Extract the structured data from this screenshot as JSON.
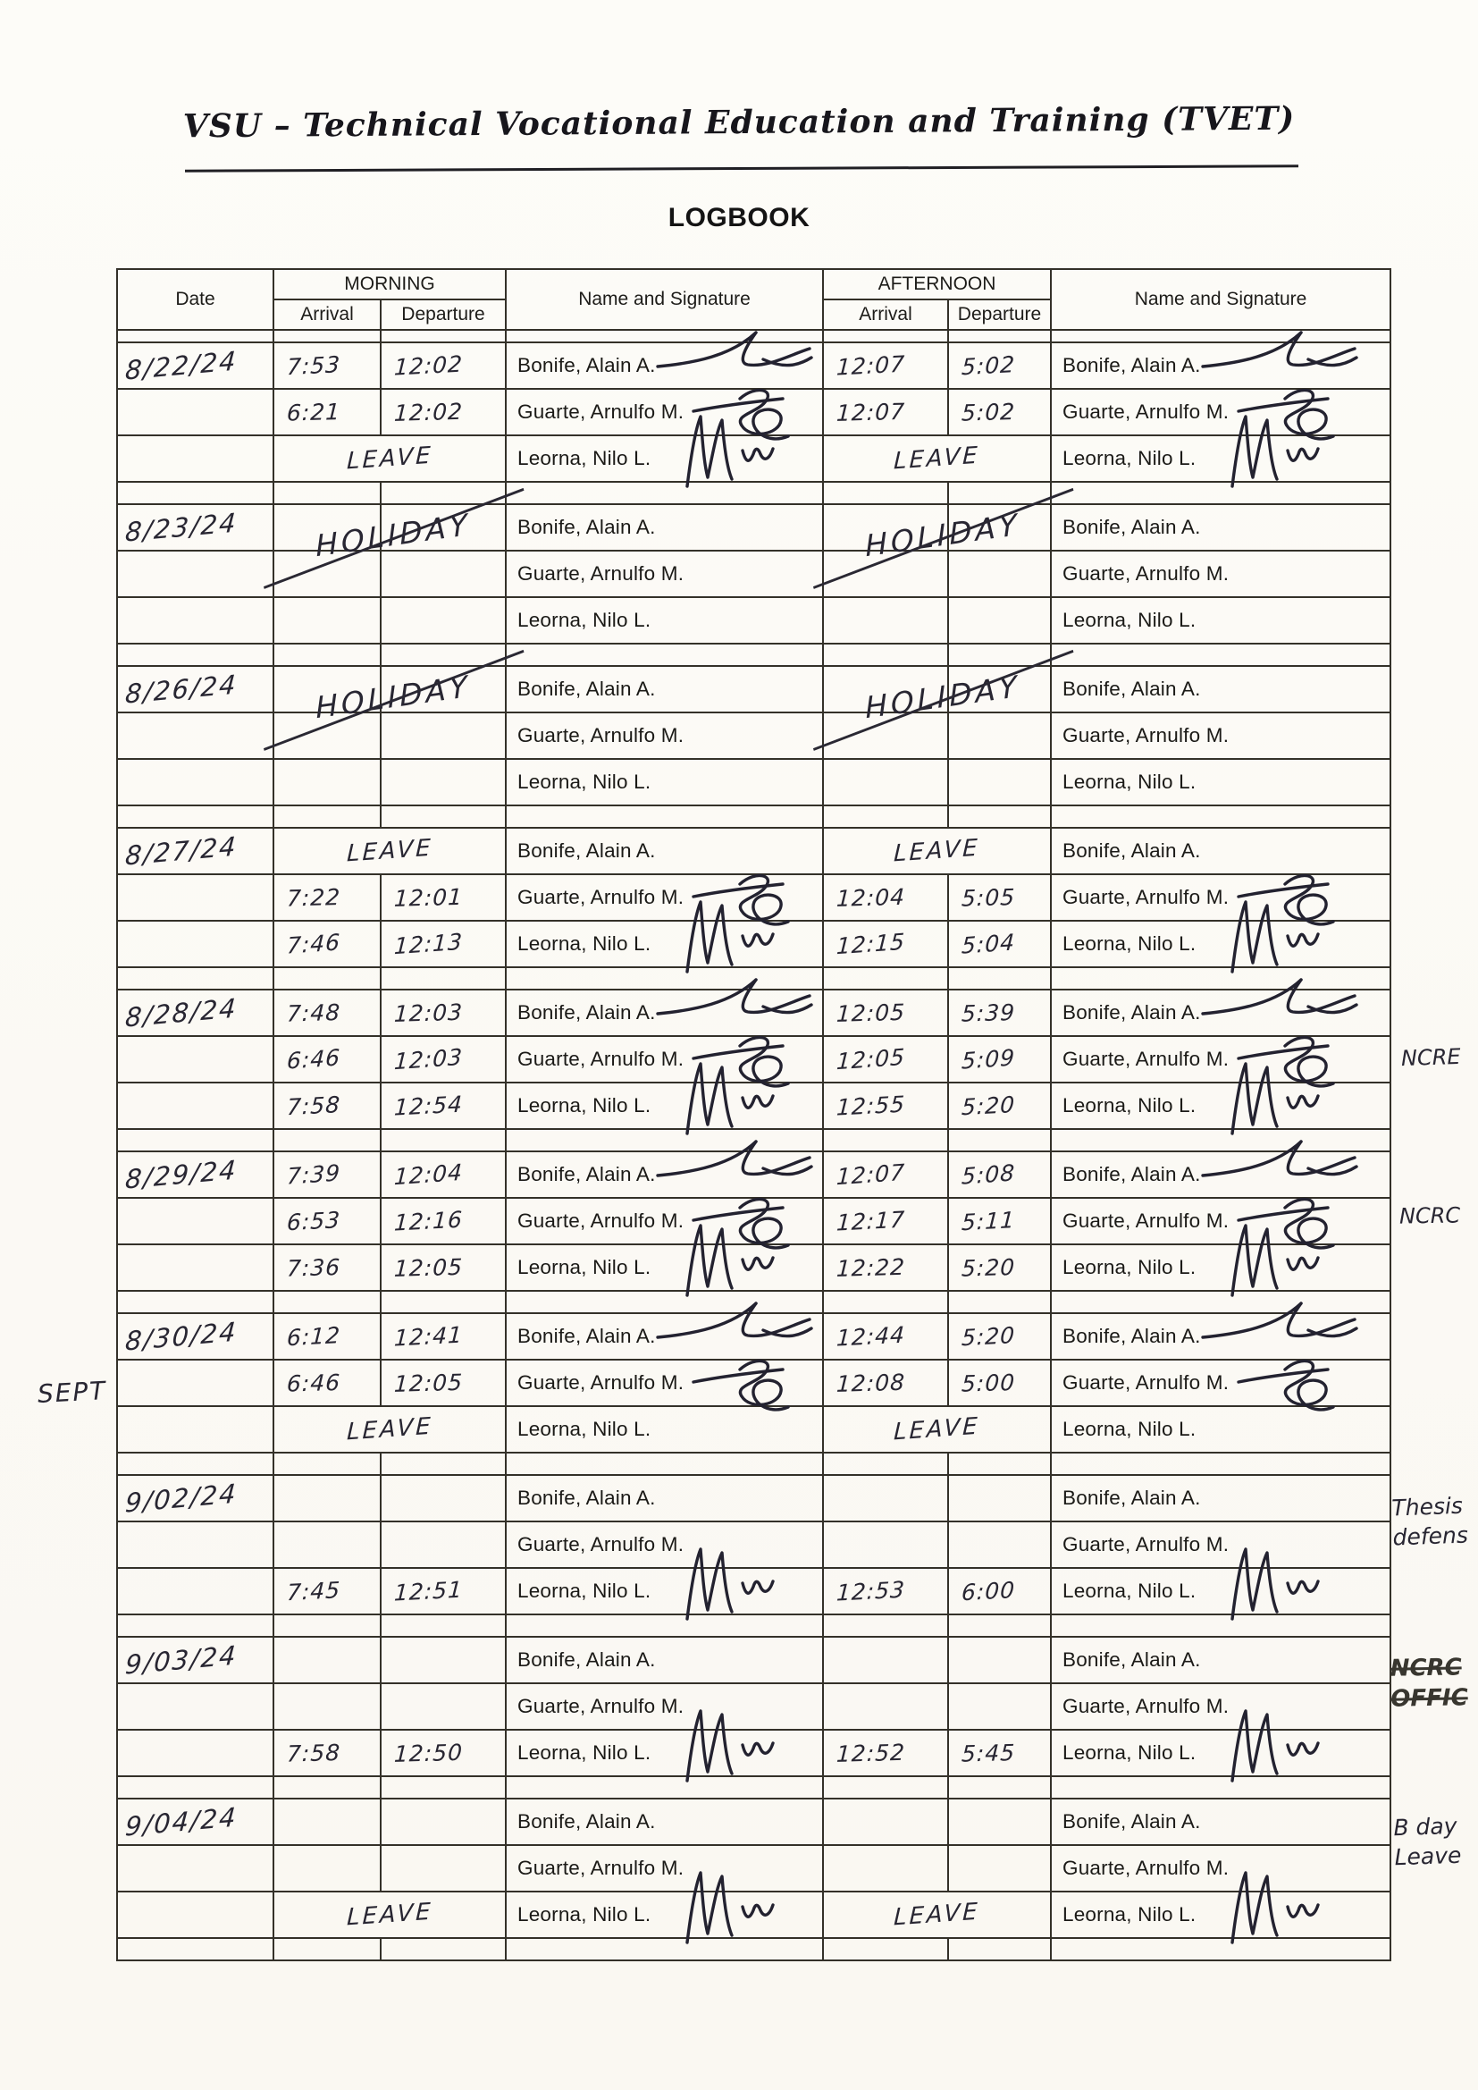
{
  "page": {
    "header_title": "VSU – Technical Vocational Education and Training (TVET)",
    "logbook_title": "LOGBOOK"
  },
  "table": {
    "headers": {
      "date": "Date",
      "morning": "MORNING",
      "afternoon": "AFTERNOON",
      "arrival": "Arrival",
      "departure": "Departure",
      "name_signature": "Name and Signature"
    },
    "names": [
      "Bonife, Alain A.",
      "Guarte, Arnulfo M.",
      "Leorna, Nilo L."
    ],
    "blocks": [
      {
        "date": "8/22/24",
        "rows": [
          {
            "m": [
              "7:53",
              "12:02"
            ],
            "a": [
              "12:07",
              "5:02"
            ],
            "sig_m": true,
            "sig_a": true
          },
          {
            "m": [
              "6:21",
              "12:02"
            ],
            "a": [
              "12:07",
              "5:02"
            ],
            "sig_m": true,
            "sig_a": true
          },
          {
            "m_note": "LEAVE",
            "a_note": "LEAVE",
            "sig_m": true,
            "sig_a": true
          }
        ]
      },
      {
        "date": "8/23/24",
        "m_block_note": "HOLIDAY",
        "a_block_note": "HOLIDAY",
        "rows": [
          {},
          {},
          {}
        ]
      },
      {
        "date": "8/26/24",
        "m_block_note": "HOLIDAY",
        "a_block_note": "HOLIDAY",
        "rows": [
          {},
          {},
          {}
        ]
      },
      {
        "date": "8/27/24",
        "rows": [
          {
            "m_note": "LEAVE",
            "a_note": "LEAVE"
          },
          {
            "m": [
              "7:22",
              "12:01"
            ],
            "a": [
              "12:04",
              "5:05"
            ],
            "sig_m": true,
            "sig_a": true
          },
          {
            "m": [
              "7:46",
              "12:13"
            ],
            "a": [
              "12:15",
              "5:04"
            ],
            "sig_m": true,
            "sig_a": true
          }
        ]
      },
      {
        "date": "8/28/24",
        "rows": [
          {
            "m": [
              "7:48",
              "12:03"
            ],
            "a": [
              "12:05",
              "5:39"
            ],
            "sig_m": true,
            "sig_a": true
          },
          {
            "m": [
              "6:46",
              "12:03"
            ],
            "a": [
              "12:05",
              "5:09"
            ],
            "sig_m": true,
            "sig_a": true
          },
          {
            "m": [
              "7:58",
              "12:54"
            ],
            "a": [
              "12:55",
              "5:20"
            ],
            "sig_m": true,
            "sig_a": true
          }
        ]
      },
      {
        "date": "8/29/24",
        "rows": [
          {
            "m": [
              "7:39",
              "12:04"
            ],
            "a": [
              "12:07",
              "5:08"
            ],
            "sig_m": true,
            "sig_a": true
          },
          {
            "m": [
              "6:53",
              "12:16"
            ],
            "a": [
              "12:17",
              "5:11"
            ],
            "sig_m": true,
            "sig_a": true
          },
          {
            "m": [
              "7:36",
              "12:05"
            ],
            "a": [
              "12:22",
              "5:20"
            ],
            "sig_m": true,
            "sig_a": true
          }
        ]
      },
      {
        "date": "8/30/24",
        "rows": [
          {
            "m": [
              "6:12",
              "12:41"
            ],
            "a": [
              "12:44",
              "5:20"
            ],
            "sig_m": true,
            "sig_a": true
          },
          {
            "m": [
              "6:46",
              "12:05"
            ],
            "a": [
              "12:08",
              "5:00"
            ],
            "sig_m": true,
            "sig_a": true
          },
          {
            "m_note": "LEAVE",
            "a_note": "LEAVE"
          }
        ]
      },
      {
        "date": "9/02/24",
        "rows": [
          {},
          {},
          {
            "m": [
              "7:45",
              "12:51"
            ],
            "a": [
              "12:53",
              "6:00"
            ],
            "sig_m": true,
            "sig_a": true
          }
        ]
      },
      {
        "date": "9/03/24",
        "rows": [
          {},
          {},
          {
            "m": [
              "7:58",
              "12:50"
            ],
            "a": [
              "12:52",
              "5:45"
            ],
            "sig_m": true,
            "sig_a": true
          }
        ]
      },
      {
        "date": "9/04/24",
        "rows": [
          {},
          {},
          {
            "m_note": "LEAVE",
            "a_note": "LEAVE",
            "sig_m": true,
            "sig_a": true
          }
        ]
      }
    ]
  },
  "margin_notes": {
    "sept": "SEPT",
    "ncre": "NCRE",
    "ncrc": "NCRC",
    "thesis": [
      "Thesis",
      "defens"
    ],
    "struck": [
      "NCRC",
      "OFFIC"
    ],
    "bday": [
      "B day",
      "Leave"
    ]
  }
}
